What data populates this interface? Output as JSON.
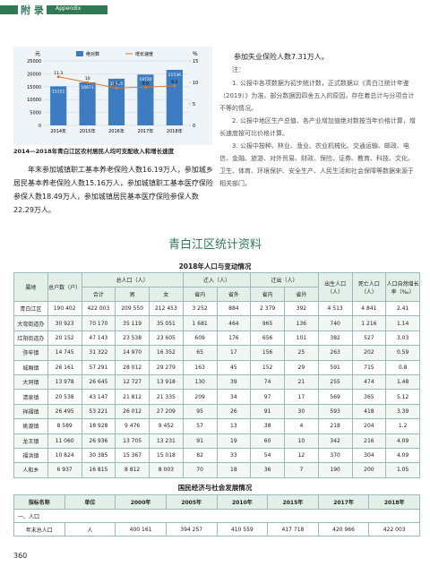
{
  "header": {
    "section": "附 录",
    "subtitle": "Appendix"
  },
  "chart": {
    "type": "bar",
    "y_unit": "元",
    "y2_unit": "%",
    "categories": [
      "2014年",
      "2015年",
      "2016年",
      "2017年",
      "2018年"
    ],
    "series": [
      {
        "name": "绝对数",
        "color": "#3d7cc0",
        "values": [
          15151,
          16671,
          18115,
          19720,
          21536
        ]
      },
      {
        "name": "增长速度",
        "color": "#e0782a",
        "axis": "y2",
        "values": [
          11.3,
          10.0,
          8.7,
          8.9,
          9.2
        ]
      }
    ],
    "ylim": [
      0,
      25000
    ],
    "yticks": [
      0,
      5000,
      10000,
      15000,
      20000,
      25000
    ],
    "y2lim": [
      0,
      15
    ],
    "y2ticks": [
      0,
      5,
      10,
      15
    ]
  },
  "caption": "2014—2018年青白江区农村居民人均可支配收入和增长速度",
  "paragraph": "年末参加城镇职工基本养老保险人数16.19万人，参加城乡居民基本养老保险人数15.16万人，参加城镇职工基本医疗保险参保人数18.49万人，参加城镇居民基本医疗保险参保人数22.29万人。",
  "right_paragraph": "参加失业保险人数7.31万人。",
  "notes": {
    "label": "注：",
    "items": [
      "1. 公报中各项数据为初步统计数，正式数据以《青白江统计年鉴（2019）》为准。部分数据因四舍五入的原因，存在着总计与分项合计不等的情况。",
      "2. 公报中地区生产总值、各产业增加值绝对数按当年价格计算，增长速度按可比价格计算。",
      "3. 公报中按种、林业、渔业、农业机械化、交通运输、邮政、电信、金融、旅游、对外贸易、财政、保险、证券、教育、科技、文化、卫生、体育、环境保护、安全生产、人民生活和社会保障等数据来源于相关部门。"
    ]
  },
  "section_title": "青白江区统计资料",
  "table1": {
    "title": "2018年人口与变动情况",
    "groups": [
      {
        "label": "属地"
      },
      {
        "label": "总户数（户）"
      },
      {
        "label": "总人口（人）",
        "sub": [
          "合计",
          "男",
          "女"
        ]
      },
      {
        "label": "迁入（人）",
        "sub": [
          "省内",
          "省外"
        ]
      },
      {
        "label": "迁出（人）",
        "sub": [
          "省内",
          "省外"
        ]
      },
      {
        "label": "出生人口（人）"
      },
      {
        "label": "死亡人口（人）"
      },
      {
        "label": "人口自然增长率（‰）"
      }
    ],
    "rows": [
      [
        "青白江区",
        "190 402",
        "422 003",
        "209 550",
        "212 453",
        "3 252",
        "884",
        "2 379",
        "392",
        "4 513",
        "4 841",
        "2.41"
      ],
      [
        "大弯街道办",
        "30 923",
        "70 170",
        "35 119",
        "35 051",
        "1 681",
        "464",
        "965",
        "136",
        "740",
        "1 216",
        "1.14"
      ],
      [
        "红阳街道办",
        "20 152",
        "47 143",
        "23 538",
        "23 605",
        "609",
        "176",
        "656",
        "101",
        "382",
        "527",
        "3.03"
      ],
      [
        "弥牟镇",
        "14 745",
        "31 322",
        "14 970",
        "16 352",
        "65",
        "17",
        "156",
        "25",
        "263",
        "202",
        "0.59"
      ],
      [
        "城厢镇",
        "26 161",
        "57 291",
        "28 012",
        "29 279",
        "163",
        "45",
        "152",
        "29",
        "591",
        "715",
        "0.8"
      ],
      [
        "大同镇",
        "13 978",
        "26 645",
        "12 727",
        "13 918",
        "130",
        "39",
        "74",
        "21",
        "255",
        "474",
        "1.48"
      ],
      [
        "清泉镇",
        "20 538",
        "43 147",
        "21 812",
        "21 335",
        "209",
        "34",
        "97",
        "17",
        "569",
        "365",
        "5.12"
      ],
      [
        "祥福镇",
        "26 495",
        "53 221",
        "26 012",
        "27 209",
        "95",
        "26",
        "91",
        "30",
        "593",
        "418",
        "3.39"
      ],
      [
        "姚渡镇",
        "8 589",
        "18 928",
        "9 476",
        "9 452",
        "57",
        "13",
        "38",
        "4",
        "218",
        "204",
        "1.2"
      ],
      [
        "龙王镇",
        "11 060",
        "26 936",
        "13 705",
        "13 231",
        "91",
        "19",
        "60",
        "10",
        "342",
        "216",
        "4.09"
      ],
      [
        "福洪镇",
        "10 824",
        "30 385",
        "15 367",
        "15 018",
        "82",
        "33",
        "54",
        "12",
        "370",
        "304",
        "4.09"
      ],
      [
        "人和乡",
        "6 937",
        "16 815",
        "8 812",
        "8 003",
        "70",
        "18",
        "36",
        "7",
        "190",
        "200",
        "1.05"
      ]
    ]
  },
  "table2": {
    "title": "国民经济与社会发展情况",
    "columns": [
      "指标名称",
      "单位",
      "2000年",
      "2005年",
      "2010年",
      "2015年",
      "2017年",
      "2018年"
    ],
    "section": "一、人口",
    "rows": [
      [
        "年末总人口",
        "人",
        "400 161",
        "394 257",
        "410 559",
        "417 718",
        "420 966",
        "422 003"
      ]
    ]
  },
  "page_number": "360"
}
